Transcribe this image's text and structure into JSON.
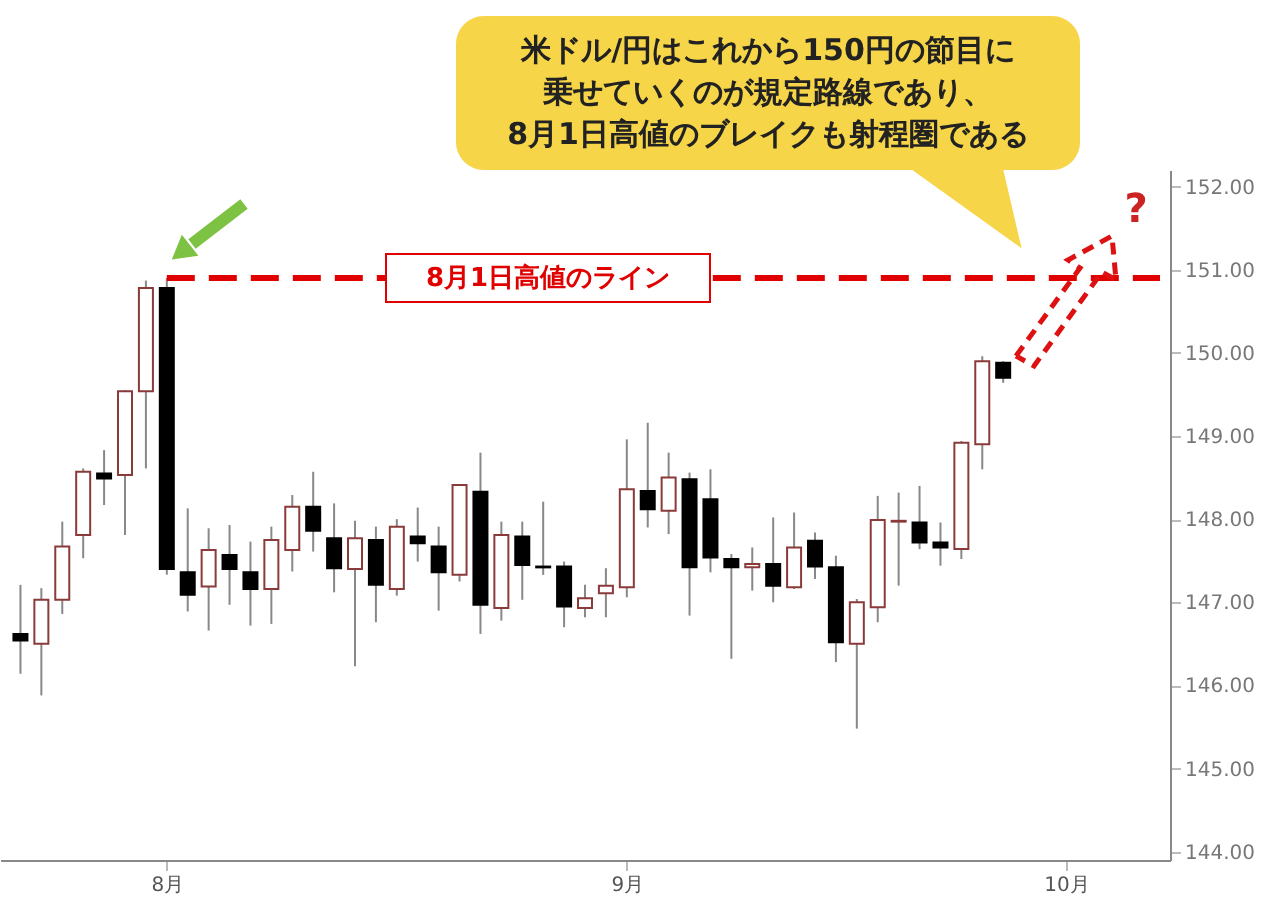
{
  "chart_data": {
    "type": "candlestick",
    "categories": [
      null,
      null,
      null,
      null,
      null,
      null,
      null,
      "8月",
      null,
      null,
      null,
      null,
      null,
      null,
      null,
      null,
      null,
      null,
      null,
      null,
      null,
      null,
      null,
      null,
      null,
      null,
      null,
      null,
      null,
      "9月",
      null,
      null,
      null,
      null,
      null,
      null,
      null,
      null,
      null,
      null,
      null,
      null,
      null,
      null,
      null,
      null,
      null,
      null,
      null,
      null,
      "10月",
      null,
      null,
      null,
      null
    ],
    "ohlc": [
      [
        146.62,
        147.21,
        146.14,
        146.54
      ],
      [
        146.5,
        147.17,
        145.88,
        147.03
      ],
      [
        147.03,
        147.97,
        146.86,
        147.67
      ],
      [
        147.81,
        148.61,
        147.53,
        148.57
      ],
      [
        148.55,
        148.83,
        148.17,
        148.49
      ],
      [
        148.53,
        149.55,
        147.81,
        149.54
      ],
      [
        149.54,
        150.87,
        148.61,
        150.78
      ],
      [
        150.78,
        150.9,
        147.33,
        147.4
      ],
      [
        147.36,
        148.13,
        146.89,
        147.09
      ],
      [
        147.19,
        147.89,
        146.66,
        147.63
      ],
      [
        147.57,
        147.93,
        146.97,
        147.4
      ],
      [
        147.36,
        147.73,
        146.72,
        147.16
      ],
      [
        147.16,
        147.91,
        146.74,
        147.75
      ],
      [
        147.63,
        148.29,
        147.37,
        148.15
      ],
      [
        148.15,
        148.57,
        147.61,
        147.86
      ],
      [
        147.77,
        148.19,
        147.12,
        147.41
      ],
      [
        147.4,
        147.98,
        146.23,
        147.77
      ],
      [
        147.75,
        147.91,
        146.76,
        147.21
      ],
      [
        147.16,
        148.0,
        147.08,
        147.91
      ],
      [
        147.79,
        148.14,
        147.49,
        147.71
      ],
      [
        147.67,
        147.91,
        146.9,
        147.36
      ],
      [
        147.33,
        148.41,
        147.25,
        148.41
      ],
      [
        148.33,
        148.8,
        146.62,
        146.97
      ],
      [
        146.93,
        147.97,
        146.78,
        147.81
      ],
      [
        147.79,
        147.97,
        147.03,
        147.45
      ],
      [
        147.43,
        148.21,
        147.33,
        147.42
      ],
      [
        147.43,
        147.49,
        146.7,
        146.95
      ],
      [
        146.93,
        147.21,
        146.82,
        147.05
      ],
      [
        147.11,
        147.41,
        146.82,
        147.2
      ],
      [
        147.18,
        148.96,
        147.06,
        148.36
      ],
      [
        148.34,
        149.16,
        147.9,
        148.12
      ],
      [
        148.1,
        148.8,
        147.82,
        148.5
      ],
      [
        148.48,
        148.56,
        146.84,
        147.42
      ],
      [
        148.24,
        148.6,
        147.36,
        147.54
      ],
      [
        147.52,
        147.58,
        146.32,
        147.42
      ],
      [
        147.42,
        147.66,
        147.14,
        147.46
      ],
      [
        147.46,
        148.02,
        147.0,
        147.2
      ],
      [
        147.18,
        148.08,
        147.16,
        147.66
      ],
      [
        147.74,
        147.84,
        147.28,
        147.43
      ],
      [
        147.42,
        147.56,
        146.28,
        146.52
      ],
      [
        146.5,
        147.04,
        145.48,
        147.0
      ],
      [
        146.94,
        148.28,
        146.76,
        147.99
      ],
      [
        147.97,
        148.32,
        147.2,
        147.98
      ],
      [
        147.96,
        148.4,
        147.64,
        147.72
      ],
      [
        147.72,
        147.96,
        147.44,
        147.66
      ],
      [
        147.64,
        148.94,
        147.52,
        148.92
      ],
      [
        148.9,
        149.96,
        148.6,
        149.9
      ],
      [
        149.88,
        149.9,
        149.64,
        149.7
      ],
      null,
      null,
      null,
      null,
      null,
      null,
      null
    ],
    "ylim": [
      143.9,
      152.2
    ],
    "yticks": [
      {
        "value": 144,
        "label": "144.00"
      },
      {
        "value": 145,
        "label": "145.00"
      },
      {
        "value": 146,
        "label": "146.00"
      },
      {
        "value": 147,
        "label": "147.00"
      },
      {
        "value": 148,
        "label": "148.00"
      },
      {
        "value": 149,
        "label": "149.00"
      },
      {
        "value": 150,
        "label": "150.00"
      },
      {
        "value": 151,
        "label": "151.00"
      },
      {
        "value": 152,
        "label": "152.00"
      }
    ],
    "ref_lines": [
      {
        "axis": "y",
        "value": 150.9,
        "label": "8月1日高値のライン",
        "color": "#e00000",
        "line_style": "dashed"
      }
    ],
    "annotations": [
      "米ドル/円はこれから150円の節目に",
      "乗せていくのが規定路線であり、",
      "8月1日高値のブレイクも射程圏である",
      "?"
    ],
    "grid": false
  }
}
